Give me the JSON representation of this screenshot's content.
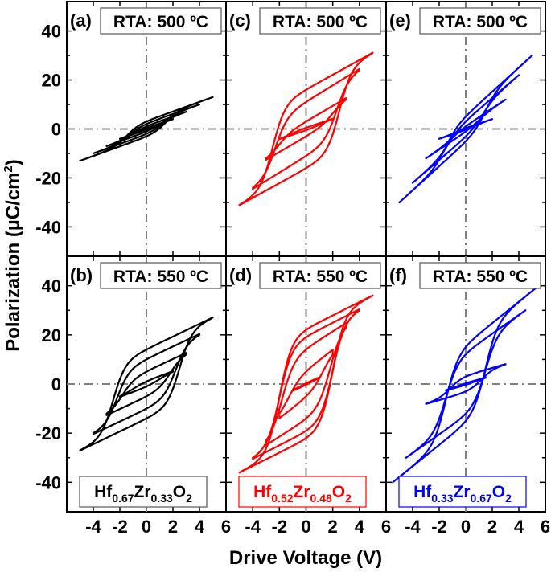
{
  "chart_data": {
    "type": "line",
    "xlabel": "Drive Voltage (V)",
    "ylabel": "Polarization (µC/cm²)",
    "ylabel_parts": {
      "main": "Polarization (",
      "mu": "µC/cm",
      "sup": "2",
      "end": ")"
    },
    "xlim": [
      -6,
      6
    ],
    "ylim": [
      -52,
      52
    ],
    "xticks": [
      -4,
      -2,
      0,
      2,
      4,
      6
    ],
    "yticks": [
      40,
      20,
      0,
      -20,
      -40
    ],
    "reference_lines": "dash-dot gray at x=0 and y=0",
    "panels": [
      {
        "label": "(a)",
        "rta": "RTA: 500 ºC",
        "color": "#000000",
        "row": 0,
        "col": 0,
        "composition": null,
        "loops": [
          {
            "vmax": 5,
            "pmax": 13,
            "pr": 3,
            "vc": 1.5
          },
          {
            "vmax": 4,
            "pmax": 10,
            "pr": 2,
            "vc": 1.3
          },
          {
            "vmax": 3,
            "pmax": 7,
            "pr": 1,
            "vc": 1.1
          },
          {
            "vmax": 2,
            "pmax": 4,
            "pr": 0.3,
            "vc": 0.8
          }
        ]
      },
      {
        "label": "(b)",
        "rta": "RTA: 550 ºC",
        "color": "#000000",
        "row": 1,
        "col": 0,
        "composition": [
          "Hf",
          "0.67",
          "Zr",
          "0.33",
          "O",
          "2"
        ],
        "loops": [
          {
            "vmax": 5,
            "pmax": 27,
            "pr": 14,
            "vc": 2.5
          },
          {
            "vmax": 4,
            "pmax": 20,
            "pr": 10,
            "vc": 2.2
          },
          {
            "vmax": 3,
            "pmax": 12,
            "pr": 5,
            "vc": 1.8
          },
          {
            "vmax": 2,
            "pmax": 5,
            "pr": 1,
            "vc": 1.0
          }
        ]
      },
      {
        "label": "(c)",
        "rta": "RTA: 500 ºC",
        "color": "#ff0000",
        "row": 0,
        "col": 1,
        "composition": null,
        "loops": [
          {
            "vmax": 5,
            "pmax": 31,
            "pr": 16,
            "vc": 2.5
          },
          {
            "vmax": 4,
            "pmax": 24,
            "pr": 11,
            "vc": 2.3
          },
          {
            "vmax": 3,
            "pmax": 12,
            "pr": 3,
            "vc": 2.0
          },
          {
            "vmax": 2,
            "pmax": 4,
            "pr": 0.5,
            "vc": 1.0
          }
        ]
      },
      {
        "label": "(d)",
        "rta": "RTA: 550 ºC",
        "color": "#ff0000",
        "row": 1,
        "col": 1,
        "composition": [
          "Hf",
          "0.52",
          "Zr",
          "0.48",
          "O",
          "2"
        ],
        "loops": [
          {
            "vmax": 5,
            "pmax": 36,
            "pr": 22,
            "vc": 2.0
          },
          {
            "vmax": 4,
            "pmax": 30,
            "pr": 19,
            "vc": 2.0
          },
          {
            "vmax": 3,
            "pmax": 23,
            "pr": 14,
            "vc": 1.8
          },
          {
            "vmax": 2,
            "pmax": 12,
            "pr": 5,
            "vc": 1.3
          },
          {
            "vmax": 1,
            "pmax": 2.5,
            "pr": 0.3,
            "vc": 0.5
          }
        ]
      },
      {
        "label": "(e)",
        "rta": "RTA: 500 ºC",
        "color": "#0000ff",
        "row": 0,
        "col": 2,
        "composition": null,
        "loops": [
          {
            "vmax": 5,
            "pmax": 30,
            "pr": 5,
            "vc": 1.5
          },
          {
            "vmax": 4,
            "pmax": 22,
            "pr": 3,
            "vc": 1.3
          },
          {
            "vmax": 3,
            "pmax": 12,
            "pr": 1,
            "vc": 1.0
          },
          {
            "vmax": 2,
            "pmax": 4,
            "pr": 0.3,
            "vc": 0.7
          }
        ]
      },
      {
        "label": "(f)",
        "rta": "RTA: 550 ºC",
        "color": "#0000ff",
        "row": 1,
        "col": 2,
        "composition": [
          "Hf",
          "0.33",
          "Zr",
          "0.67",
          "O",
          "2"
        ],
        "loops": [
          {
            "vmax": 5.5,
            "pmax": 40,
            "pr": 15,
            "vc": 1.5
          },
          {
            "vmax": 4.5,
            "pmax": 30,
            "pr": 12,
            "vc": 1.5
          },
          {
            "vmax": 3,
            "pmax": 8,
            "pr": 3,
            "vc": 1.2
          },
          {
            "vmax": 1.5,
            "pmax": 2.5,
            "pr": 0.3,
            "vc": 0.6
          }
        ]
      }
    ]
  }
}
